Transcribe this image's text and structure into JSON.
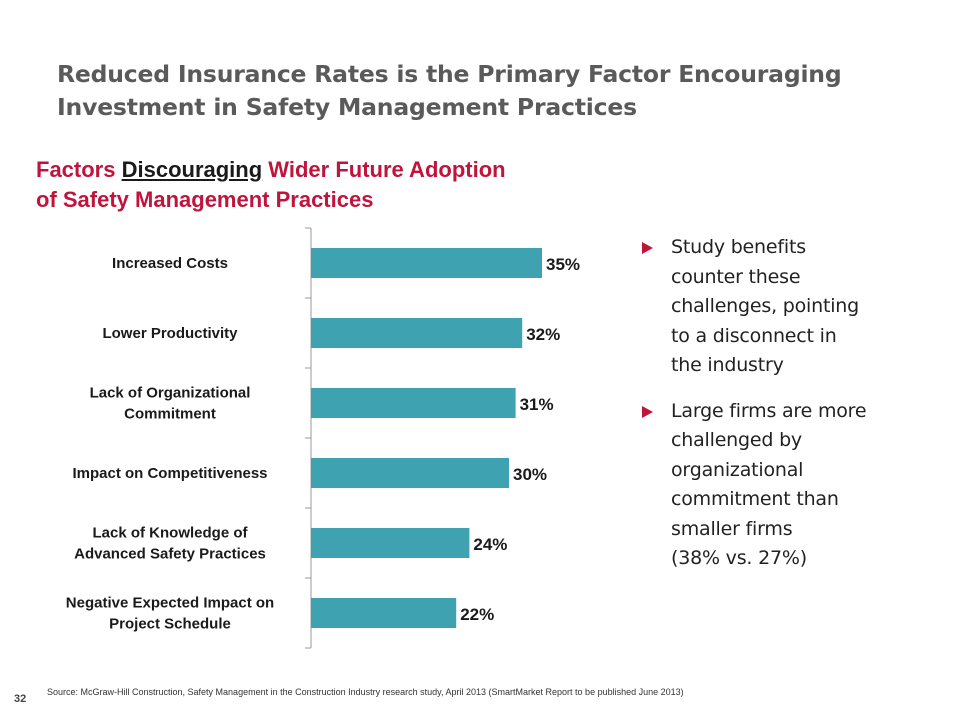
{
  "slide": {
    "title_lines": [
      "Reduced Insurance Rates is the Primary Factor Encouraging",
      "Investment in Safety Management Practices"
    ],
    "page_number": "32",
    "source": "Source: McGraw-Hill Construction, Safety Management in the Construction Industry research study, April 2013 (SmartMarket Report to be published  June 2013)"
  },
  "chart_heading": {
    "before": "Factors ",
    "underlined": "Discouraging",
    "after_line1": " Wider Future Adoption",
    "line2": "of Safety Management Practices"
  },
  "bullets": [
    {
      "lines": [
        "Study benefits",
        "counter these",
        "challenges, pointing",
        "to a disconnect in",
        "the industry"
      ]
    },
    {
      "lines": [
        "Large firms are more",
        "challenged by",
        "organizational",
        "commitment than",
        "smaller firms",
        "(38% vs. 27%)"
      ]
    }
  ],
  "colors": {
    "bar": "#3fa2b0",
    "accent": "#c0143c",
    "title_gray": "#5a5a5a"
  },
  "chart_data": {
    "type": "bar",
    "orientation": "horizontal",
    "title": "Factors Discouraging Wider Future Adoption of Safety Management Practices",
    "categories": [
      [
        "Increased Costs"
      ],
      [
        "Lower Productivity"
      ],
      [
        "Lack of Organizational",
        "Commitment"
      ],
      [
        "Impact on Competitiveness"
      ],
      [
        "Lack of Knowledge of",
        "Advanced Safety Practices"
      ],
      [
        "Negative Expected Impact on",
        "Project Schedule"
      ]
    ],
    "values": [
      35,
      32,
      31,
      30,
      24,
      22
    ],
    "value_labels": [
      "35%",
      "32%",
      "31%",
      "30%",
      "24%",
      "22%"
    ],
    "unit": "%",
    "grid": false,
    "legend": "none"
  }
}
